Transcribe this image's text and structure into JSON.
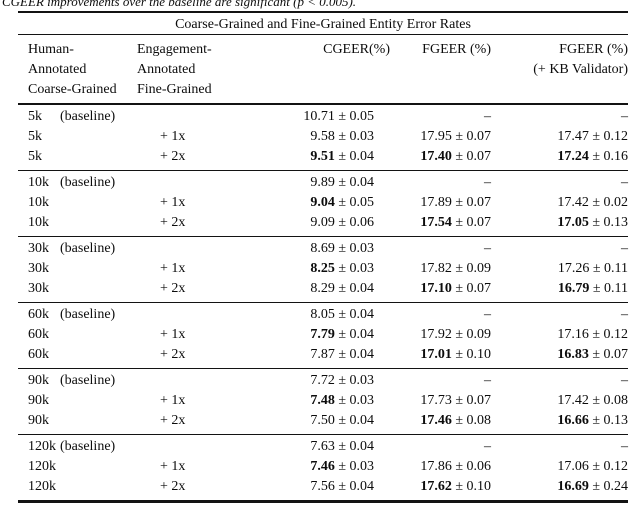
{
  "caption_fragment": "CGEER improvements over the baseline are significant (p < 0.005).",
  "table": {
    "title": "Coarse-Grained and Fine-Grained Entity Error Rates",
    "header": {
      "col1_lines": [
        "Human-",
        "Annotated",
        "Coarse-Grained"
      ],
      "col2_lines": [
        "Engagement-",
        "Annotated",
        "Fine-Grained"
      ],
      "col3": "CGEER(%)",
      "col4": "FGEER (%)",
      "col5_lines": [
        "FGEER (%)",
        "(+ KB Validator)"
      ]
    },
    "plus_minus": "±",
    "dash": "–",
    "blocks": [
      {
        "rows": [
          {
            "size": "5k",
            "qual": "(baseline)",
            "aug": "",
            "cgeer": {
              "v": "10.71",
              "e": "0.05",
              "b": false
            },
            "fgeer": null,
            "kb": null
          },
          {
            "size": "5k",
            "qual": "",
            "aug": "+ 1x",
            "cgeer": {
              "v": "9.58",
              "e": "0.03",
              "b": false
            },
            "fgeer": {
              "v": "17.95",
              "e": "0.07",
              "b": false
            },
            "kb": {
              "v": "17.47",
              "e": "0.12",
              "b": false
            }
          },
          {
            "size": "5k",
            "qual": "",
            "aug": "+ 2x",
            "cgeer": {
              "v": "9.51",
              "e": "0.04",
              "b": true
            },
            "fgeer": {
              "v": "17.40",
              "e": "0.07",
              "b": true
            },
            "kb": {
              "v": "17.24",
              "e": "0.16",
              "b": true
            }
          }
        ]
      },
      {
        "rows": [
          {
            "size": "10k",
            "qual": "(baseline)",
            "aug": "",
            "cgeer": {
              "v": "9.89",
              "e": "0.04",
              "b": false
            },
            "fgeer": null,
            "kb": null
          },
          {
            "size": "10k",
            "qual": "",
            "aug": "+ 1x",
            "cgeer": {
              "v": "9.04",
              "e": "0.05",
              "b": true
            },
            "fgeer": {
              "v": "17.89",
              "e": "0.07",
              "b": false
            },
            "kb": {
              "v": "17.42",
              "e": "0.02",
              "b": false
            }
          },
          {
            "size": "10k",
            "qual": "",
            "aug": "+ 2x",
            "cgeer": {
              "v": "9.09",
              "e": "0.06",
              "b": false
            },
            "fgeer": {
              "v": "17.54",
              "e": "0.07",
              "b": true
            },
            "kb": {
              "v": "17.05",
              "e": "0.13",
              "b": true
            }
          }
        ]
      },
      {
        "rows": [
          {
            "size": "30k",
            "qual": "(baseline)",
            "aug": "",
            "cgeer": {
              "v": "8.69",
              "e": "0.03",
              "b": false
            },
            "fgeer": null,
            "kb": null
          },
          {
            "size": "30k",
            "qual": "",
            "aug": "+ 1x",
            "cgeer": {
              "v": "8.25",
              "e": "0.03",
              "b": true
            },
            "fgeer": {
              "v": "17.82",
              "e": "0.09",
              "b": false
            },
            "kb": {
              "v": "17.26",
              "e": "0.11",
              "b": false
            }
          },
          {
            "size": "30k",
            "qual": "",
            "aug": "+ 2x",
            "cgeer": {
              "v": "8.29",
              "e": "0.04",
              "b": false
            },
            "fgeer": {
              "v": "17.10",
              "e": "0.07",
              "b": true
            },
            "kb": {
              "v": "16.79",
              "e": "0.11",
              "b": true
            }
          }
        ]
      },
      {
        "rows": [
          {
            "size": "60k",
            "qual": "(baseline)",
            "aug": "",
            "cgeer": {
              "v": "8.05",
              "e": "0.04",
              "b": false
            },
            "fgeer": null,
            "kb": null
          },
          {
            "size": "60k",
            "qual": "",
            "aug": "+ 1x",
            "cgeer": {
              "v": "7.79",
              "e": "0.04",
              "b": true
            },
            "fgeer": {
              "v": "17.92",
              "e": "0.09",
              "b": false
            },
            "kb": {
              "v": "17.16",
              "e": "0.12",
              "b": false
            }
          },
          {
            "size": "60k",
            "qual": "",
            "aug": "+ 2x",
            "cgeer": {
              "v": "7.87",
              "e": "0.04",
              "b": false
            },
            "fgeer": {
              "v": "17.01",
              "e": "0.10",
              "b": true
            },
            "kb": {
              "v": "16.83",
              "e": "0.07",
              "b": true
            }
          }
        ]
      },
      {
        "rows": [
          {
            "size": "90k",
            "qual": "(baseline)",
            "aug": "",
            "cgeer": {
              "v": "7.72",
              "e": "0.03",
              "b": false
            },
            "fgeer": null,
            "kb": null
          },
          {
            "size": "90k",
            "qual": "",
            "aug": "+ 1x",
            "cgeer": {
              "v": "7.48",
              "e": "0.03",
              "b": true
            },
            "fgeer": {
              "v": "17.73",
              "e": "0.07",
              "b": false
            },
            "kb": {
              "v": "17.42",
              "e": "0.08",
              "b": false
            }
          },
          {
            "size": "90k",
            "qual": "",
            "aug": "+ 2x",
            "cgeer": {
              "v": "7.50",
              "e": "0.04",
              "b": false
            },
            "fgeer": {
              "v": "17.46",
              "e": "0.08",
              "b": true
            },
            "kb": {
              "v": "16.66",
              "e": "0.13",
              "b": true
            }
          }
        ]
      },
      {
        "rows": [
          {
            "size": "120k",
            "qual": "(baseline)",
            "aug": "",
            "cgeer": {
              "v": "7.63",
              "e": "0.04",
              "b": false
            },
            "fgeer": null,
            "kb": null
          },
          {
            "size": "120k",
            "qual": "",
            "aug": "+ 1x",
            "cgeer": {
              "v": "7.46",
              "e": "0.03",
              "b": true
            },
            "fgeer": {
              "v": "17.86",
              "e": "0.06",
              "b": false
            },
            "kb": {
              "v": "17.06",
              "e": "0.12",
              "b": false
            }
          },
          {
            "size": "120k",
            "qual": "",
            "aug": "+ 2x",
            "cgeer": {
              "v": "7.56",
              "e": "0.04",
              "b": false
            },
            "fgeer": {
              "v": "17.62",
              "e": "0.10",
              "b": true
            },
            "kb": {
              "v": "16.69",
              "e": "0.24",
              "b": true
            }
          }
        ]
      }
    ]
  }
}
